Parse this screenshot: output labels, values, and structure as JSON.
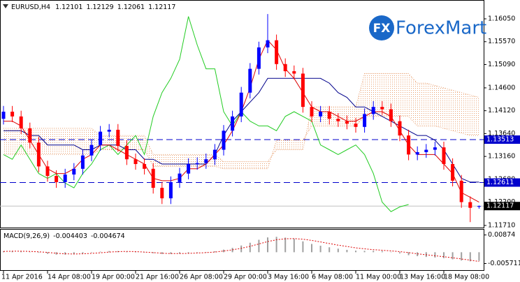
{
  "brand": "ForexMart",
  "brand_icon": "FX",
  "chart_data": [
    {
      "type": "candlestick",
      "title": "EURUSD,H4",
      "categories": [
        "11 Apr 2016",
        null,
        null,
        null,
        null,
        "14 Apr 08:00",
        null,
        null,
        null,
        null,
        "19 Apr 00:00",
        null,
        null,
        null,
        null,
        "21 Apr 16:00",
        null,
        null,
        null,
        null,
        "26 Apr 08:00",
        null,
        null,
        null,
        null,
        "29 Apr 00:00",
        null,
        null,
        null,
        null,
        "3 May 16:00",
        null,
        null,
        null,
        null,
        "6 May 08:00",
        null,
        null,
        null,
        null,
        "11 May 00:00",
        null,
        null,
        null,
        null,
        "13 May 16:00",
        null,
        null,
        null,
        null,
        "18 May 08:00",
        null,
        null,
        null,
        null
      ],
      "open": [
        1.1395,
        1.141,
        1.14,
        1.1375,
        1.1345,
        1.1295,
        1.1275,
        1.1262,
        1.1278,
        1.129,
        1.1318,
        1.134,
        1.1368,
        1.1372,
        1.1338,
        1.131,
        1.13,
        1.129,
        1.125,
        1.1228,
        1.1262,
        1.128,
        1.13,
        1.1302,
        1.131,
        1.133,
        1.137,
        1.14,
        1.145,
        1.15,
        1.1545,
        1.156,
        1.151,
        1.1495,
        1.149,
        1.142,
        1.14,
        1.141,
        1.1395,
        1.139,
        1.1385,
        1.1378,
        1.1405,
        1.142,
        1.1415,
        1.139,
        1.136,
        1.132,
        1.1325,
        1.133,
        1.1335,
        1.13,
        1.1265,
        1.122,
        1.12101
      ],
      "high": [
        1.1422,
        1.1422,
        1.1412,
        1.1387,
        1.1357,
        1.1307,
        1.1287,
        1.129,
        1.1302,
        1.133,
        1.1352,
        1.138,
        1.1384,
        1.1384,
        1.135,
        1.1322,
        1.1312,
        1.1302,
        1.1262,
        1.1274,
        1.1292,
        1.1312,
        1.1314,
        1.1322,
        1.1342,
        1.1382,
        1.1412,
        1.1462,
        1.1512,
        1.1557,
        1.1615,
        1.1572,
        1.1522,
        1.1507,
        1.1502,
        1.1432,
        1.1422,
        1.1422,
        1.1407,
        1.1402,
        1.1397,
        1.1417,
        1.1432,
        1.1432,
        1.1427,
        1.1402,
        1.1372,
        1.1337,
        1.1342,
        1.1347,
        1.1347,
        1.1312,
        1.1277,
        1.1232,
        1.12129
      ],
      "low": [
        1.1383,
        1.1388,
        1.1363,
        1.1333,
        1.1283,
        1.1263,
        1.125,
        1.125,
        1.1266,
        1.1278,
        1.1306,
        1.1328,
        1.1356,
        1.1326,
        1.1298,
        1.1288,
        1.1278,
        1.1238,
        1.1216,
        1.1216,
        1.125,
        1.1268,
        1.1288,
        1.129,
        1.1298,
        1.1318,
        1.1358,
        1.1388,
        1.1438,
        1.1488,
        1.1533,
        1.1498,
        1.1483,
        1.1478,
        1.1408,
        1.1388,
        1.1388,
        1.1383,
        1.1378,
        1.1373,
        1.1366,
        1.1366,
        1.1393,
        1.1403,
        1.1378,
        1.1348,
        1.1308,
        1.1308,
        1.1313,
        1.1318,
        1.1288,
        1.1253,
        1.1208,
        1.1178,
        1.12061
      ],
      "close": [
        1.141,
        1.14,
        1.1375,
        1.1345,
        1.1295,
        1.1275,
        1.1262,
        1.1278,
        1.129,
        1.1318,
        1.134,
        1.1368,
        1.1372,
        1.1338,
        1.131,
        1.13,
        1.129,
        1.125,
        1.1228,
        1.1262,
        1.128,
        1.13,
        1.1302,
        1.131,
        1.133,
        1.137,
        1.14,
        1.145,
        1.15,
        1.1545,
        1.156,
        1.151,
        1.1495,
        1.149,
        1.142,
        1.14,
        1.141,
        1.1395,
        1.139,
        1.1385,
        1.1378,
        1.1405,
        1.142,
        1.1415,
        1.139,
        1.136,
        1.132,
        1.1325,
        1.133,
        1.1335,
        1.13,
        1.1265,
        1.122,
        1.1208,
        1.12117
      ],
      "up_color": "#0000ff",
      "down_color": "#ff0000",
      "cloud": {
        "color": "#e8a070",
        "span_a": [
          1.1375,
          1.1375,
          1.1375,
          1.1375,
          1.1375,
          1.1375,
          1.1375,
          1.1375,
          1.1375,
          1.1375,
          1.1375,
          1.136,
          1.136,
          1.136,
          1.136,
          1.136,
          1.136,
          1.132,
          1.132,
          1.132,
          1.132,
          1.132,
          1.132,
          1.132,
          1.132,
          1.1305,
          1.1305,
          1.1305,
          1.1305,
          1.1305,
          1.1305,
          1.133,
          1.133,
          1.133,
          1.133,
          1.142,
          1.142,
          1.142,
          1.142,
          1.142,
          1.142,
          1.149,
          1.149,
          1.149,
          1.149,
          1.149,
          1.149,
          1.147,
          1.147,
          1.1465,
          1.146,
          1.1455,
          1.145,
          1.1445,
          1.144
        ],
        "span_b": [
          1.132,
          1.132,
          1.132,
          1.132,
          1.132,
          1.132,
          1.132,
          1.132,
          1.132,
          1.132,
          1.132,
          1.133,
          1.133,
          1.133,
          1.133,
          1.133,
          1.133,
          1.1295,
          1.1295,
          1.1295,
          1.1295,
          1.1295,
          1.1295,
          1.1295,
          1.1295,
          1.129,
          1.129,
          1.129,
          1.129,
          1.129,
          1.129,
          1.135,
          1.135,
          1.135,
          1.135,
          1.138,
          1.138,
          1.138,
          1.138,
          1.138,
          1.138,
          1.14,
          1.14,
          1.14,
          1.14,
          1.14,
          1.14,
          1.138,
          1.138,
          1.138,
          1.1375,
          1.137,
          1.1365,
          1.136,
          1.136
        ]
      },
      "series": [
        {
          "color": "#22cc22",
          "values": [
            1.132,
            1.131,
            1.134,
            1.131,
            1.128,
            1.127,
            1.128,
            1.126,
            1.125,
            1.128,
            1.13,
            1.133,
            1.134,
            1.132,
            1.134,
            1.136,
            1.132,
            1.14,
            1.145,
            1.148,
            1.152,
            1.161,
            1.155,
            1.15,
            1.15,
            1.141,
            1.138,
            1.141,
            1.139,
            1.138,
            1.138,
            1.137,
            1.14,
            1.141,
            1.14,
            1.139,
            1.134,
            1.133,
            1.132,
            1.133,
            1.134,
            1.132,
            1.128,
            1.122,
            1.12,
            1.121,
            1.1215,
            null,
            null,
            null,
            null,
            null,
            null,
            null,
            null
          ]
        },
        {
          "color": "#00008b",
          "values": [
            1.137,
            1.137,
            1.137,
            1.136,
            1.136,
            1.134,
            1.134,
            1.134,
            1.134,
            1.133,
            1.133,
            1.134,
            1.134,
            1.134,
            1.133,
            1.133,
            1.131,
            1.131,
            1.13,
            1.13,
            1.13,
            1.13,
            1.13,
            1.13,
            1.132,
            1.136,
            1.139,
            1.141,
            1.143,
            1.145,
            1.148,
            1.148,
            1.148,
            1.148,
            1.148,
            1.148,
            1.148,
            1.147,
            1.145,
            1.144,
            1.142,
            1.142,
            1.141,
            1.14,
            1.139,
            1.138,
            1.137,
            1.136,
            1.136,
            1.135,
            1.133,
            1.13,
            1.127,
            1.1262,
            1.1262
          ]
        },
        {
          "color": "#dd0000",
          "values": [
            1.139,
            1.139,
            1.138,
            1.135,
            1.132,
            1.129,
            1.128,
            1.128,
            1.129,
            1.131,
            1.132,
            1.134,
            1.134,
            1.133,
            1.132,
            1.131,
            1.13,
            1.127,
            1.1265,
            1.1265,
            1.127,
            1.129,
            1.129,
            1.13,
            1.132,
            1.134,
            1.137,
            1.141,
            1.146,
            1.152,
            1.156,
            1.154,
            1.15,
            1.148,
            1.145,
            1.142,
            1.141,
            1.141,
            1.14,
            1.139,
            1.139,
            1.14,
            1.141,
            1.141,
            1.14,
            1.137,
            1.134,
            1.132,
            1.132,
            1.132,
            1.13,
            1.128,
            1.124,
            1.123,
            1.122
          ]
        }
      ],
      "hlines": [
        1.13513,
        1.12611
      ],
      "hline_color": "#0000cc",
      "ylim": [
        1.11651,
        1.16446
      ],
      "yticks": [
        {
          "value": 1.1605,
          "label": "1.16050"
        },
        {
          "value": 1.1557,
          "label": "1.15570"
        },
        {
          "value": 1.1509,
          "label": "1.15090"
        },
        {
          "value": 1.146,
          "label": "1.14600"
        },
        {
          "value": 1.1412,
          "label": "1.14120"
        },
        {
          "value": 1.1364,
          "label": "1.13640"
        },
        {
          "value": 1.1316,
          "label": "1.13160"
        },
        {
          "value": 1.1268,
          "label": "1.12680"
        },
        {
          "value": 1.122,
          "label": "1.12200"
        },
        {
          "value": 1.1171,
          "label": "1.11710"
        }
      ]
    },
    {
      "type": "macd",
      "title": "MACD(9,26,9)",
      "color": "#a0a0a0",
      "signal_color": "#dd0000",
      "histogram": [
        0.0005,
        0.0006,
        0.0004,
        0.0002,
        -0.0003,
        -0.0008,
        -0.0012,
        -0.0012,
        -0.001,
        -0.0006,
        -0.0002,
        0.0003,
        0.0006,
        0.0006,
        0.0003,
        0.0001,
        -0.0001,
        -0.0005,
        -0.0009,
        -0.0009,
        -0.0007,
        -0.0004,
        -0.0002,
        0.0001,
        0.0005,
        0.0013,
        0.0022,
        0.0034,
        0.0048,
        0.0063,
        0.0075,
        0.0078,
        0.0074,
        0.0068,
        0.0055,
        0.0042,
        0.0033,
        0.0025,
        0.0018,
        0.0012,
        0.0008,
        0.0007,
        0.0007,
        0.0006,
        0.0002,
        -0.0006,
        -0.0015,
        -0.002,
        -0.0024,
        -0.0027,
        -0.003,
        -0.0036,
        -0.0042,
        -0.0046,
        -0.004403
      ],
      "signal": [
        0.0004,
        0.0005,
        0.0005,
        0.0004,
        0.0002,
        -0.0001,
        -0.0005,
        -0.0008,
        -0.0009,
        -0.0008,
        -0.0006,
        -0.0003,
        0.0001,
        0.0003,
        0.0004,
        0.0003,
        0.0001,
        -0.0002,
        -0.0005,
        -0.0007,
        -0.0007,
        -0.0006,
        -0.0004,
        -0.0002,
        0.0001,
        0.0006,
        0.0012,
        0.002,
        0.003,
        0.0042,
        0.0054,
        0.0063,
        0.0068,
        0.0069,
        0.0066,
        0.006,
        0.0052,
        0.0044,
        0.0036,
        0.0029,
        0.0022,
        0.0017,
        0.0013,
        0.001,
        0.0007,
        0.0003,
        -0.0002,
        -0.0008,
        -0.0013,
        -0.0018,
        -0.0023,
        -0.0028,
        -0.0034,
        -0.004,
        -0.004674
      ],
      "ylim": [
        -0.00907,
        0.01143
      ],
      "yticks": [
        0.00874,
        -0.005711
      ]
    }
  ]
}
